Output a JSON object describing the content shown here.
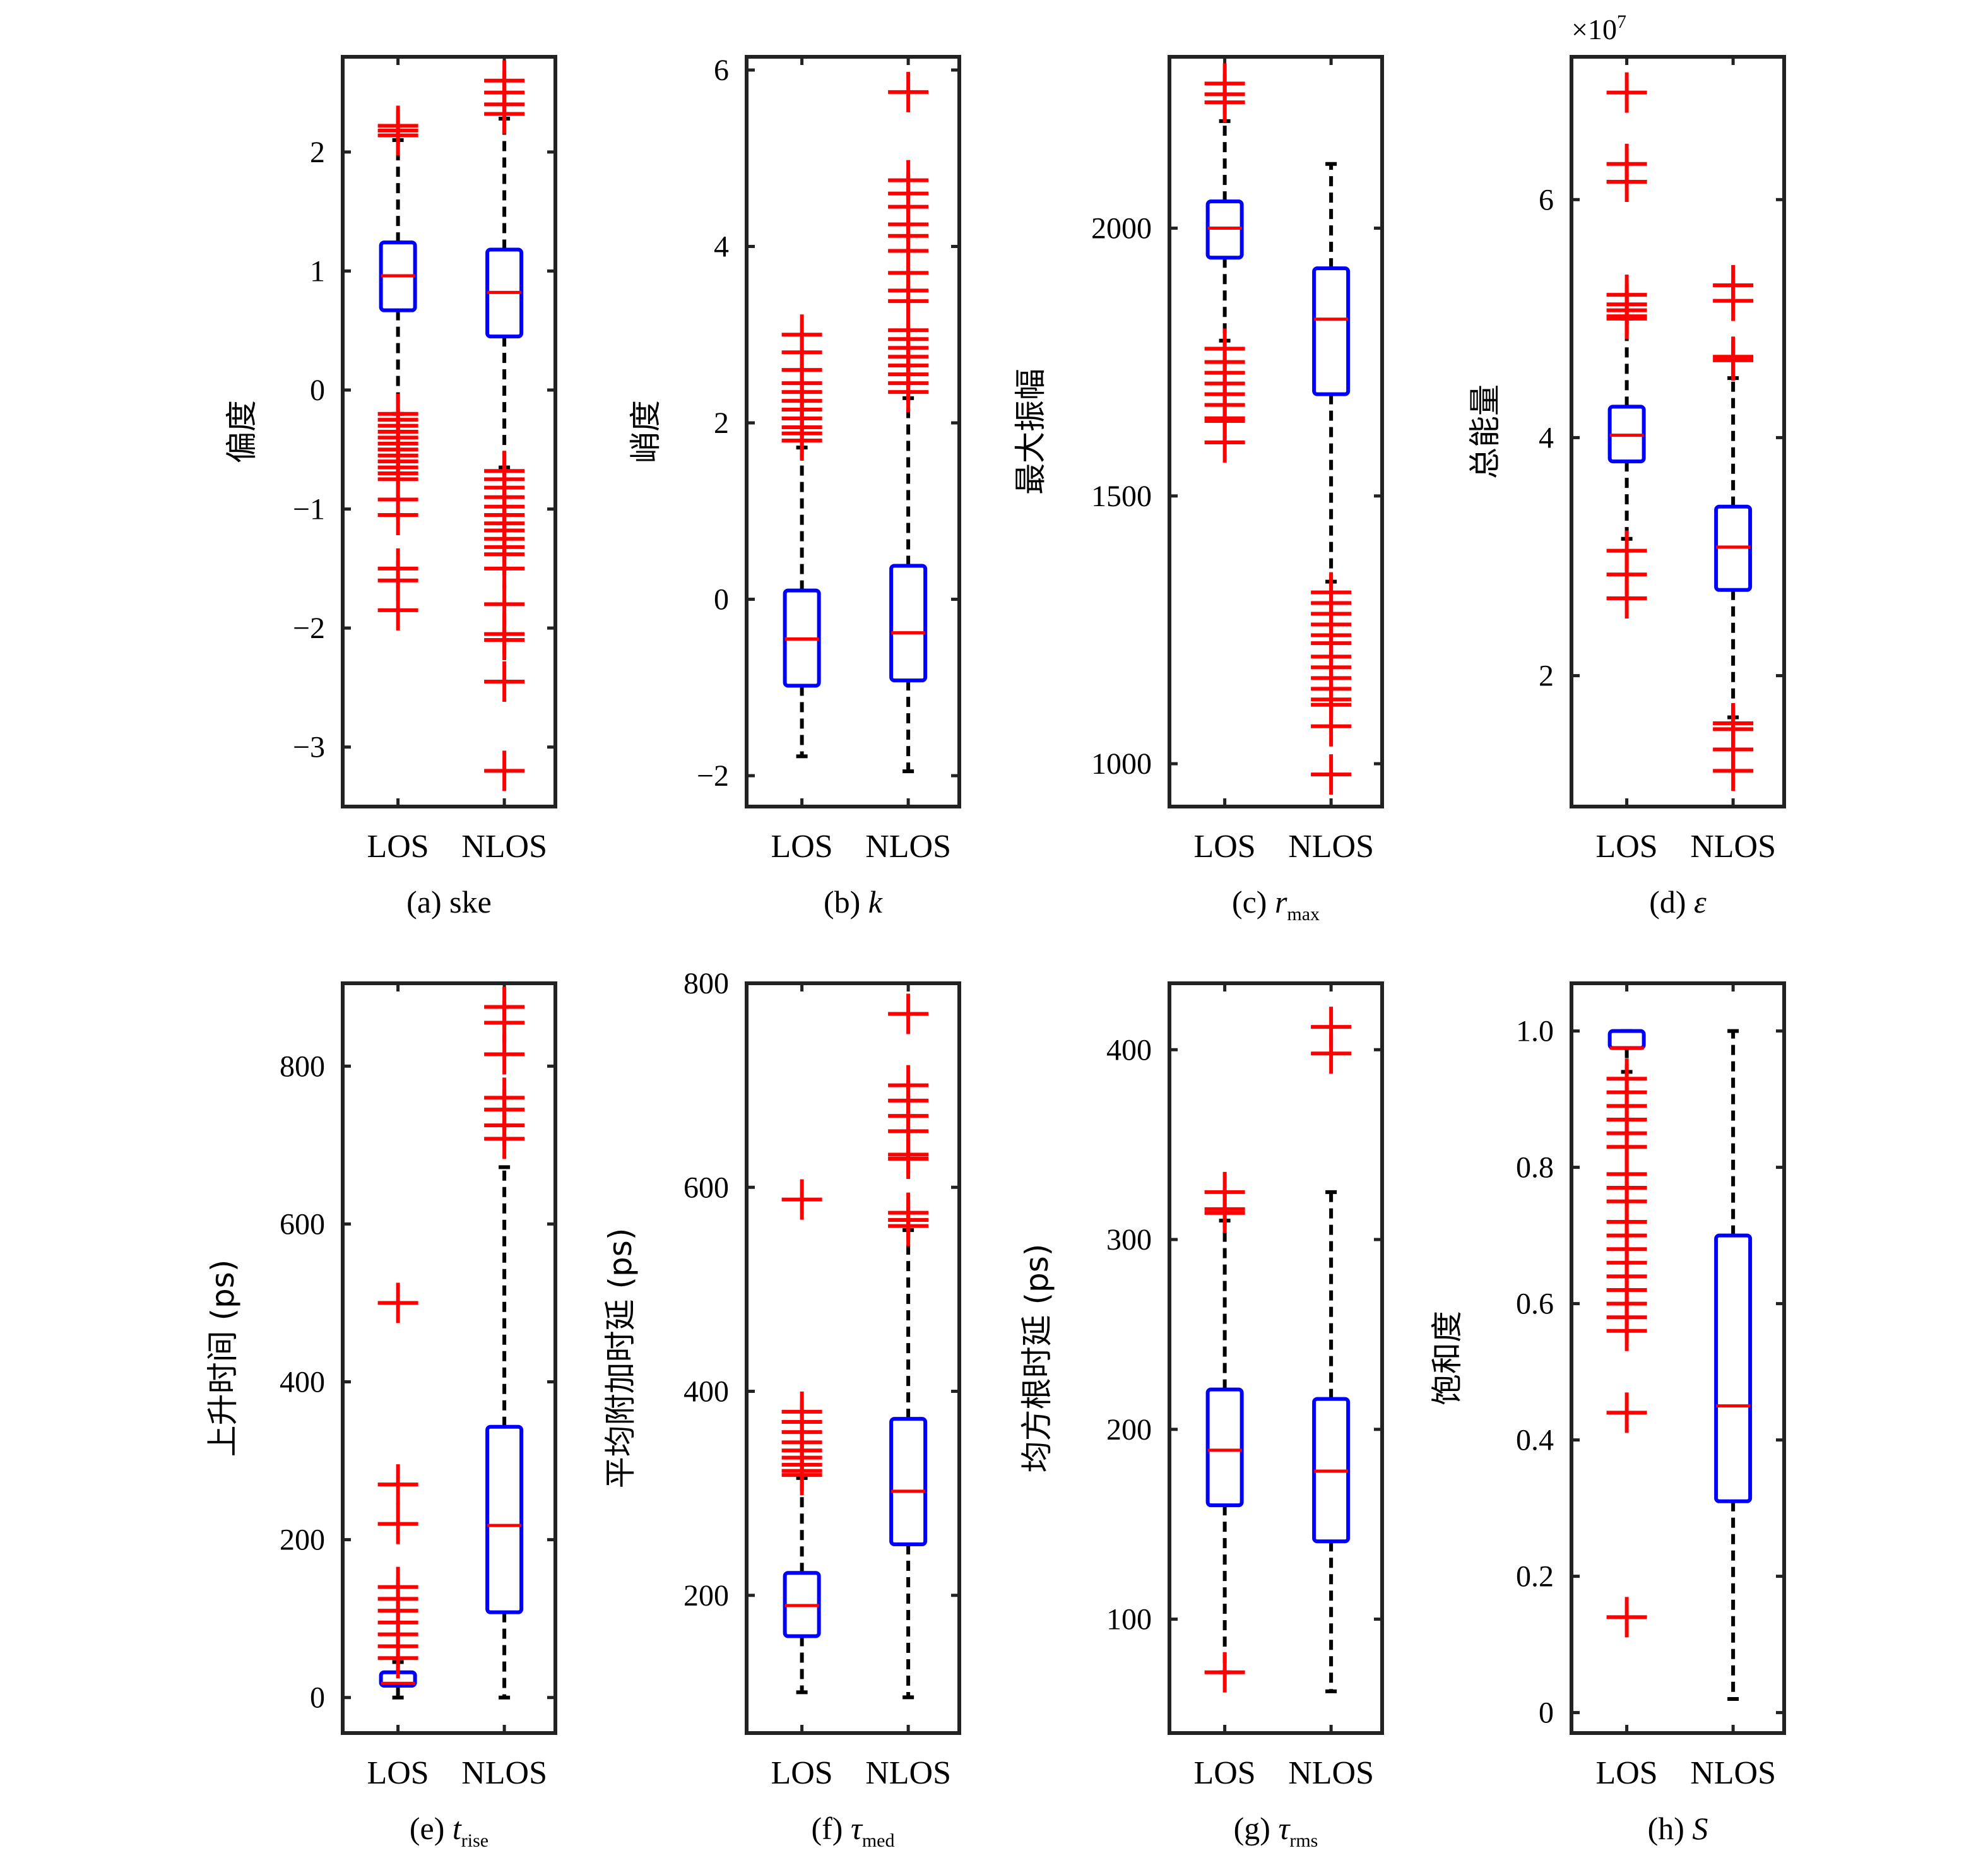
{
  "colors": {
    "box": "#0000ff",
    "median": "#ff0000",
    "outlier": "#ff0000",
    "whisker": "#000000",
    "axes": "#222222"
  },
  "chart_data": [
    {
      "type": "box",
      "caption": {
        "prefix": "(a) ",
        "symbol": "ske",
        "italic": false,
        "sub": ""
      },
      "ylabel": "偏度",
      "categories": [
        "LOS",
        "NLOS"
      ],
      "ylim": [
        -3.5,
        2.8
      ],
      "yticks": [
        -3,
        -2,
        -1,
        0,
        1,
        2
      ],
      "ytick_labels": [
        "−3",
        "−2",
        "−1",
        "0",
        "1",
        "2"
      ],
      "boxes": [
        {
          "whislo": -0.2,
          "q1": 0.67,
          "med": 0.96,
          "q3": 1.24,
          "whishi": 2.1,
          "fliers": [
            2.22,
            2.18,
            2.14,
            -0.2,
            -0.25,
            -0.3,
            -0.35,
            -0.4,
            -0.45,
            -0.5,
            -0.55,
            -0.6,
            -0.65,
            -0.7,
            -0.75,
            -0.92,
            -1.05,
            -1.5,
            -1.6,
            -1.85
          ]
        },
        {
          "whislo": -0.65,
          "q1": 0.45,
          "med": 0.82,
          "q3": 1.18,
          "whishi": 2.28,
          "fliers": [
            2.6,
            2.5,
            2.4,
            2.32,
            -0.68,
            -0.75,
            -0.82,
            -0.9,
            -0.98,
            -1.05,
            -1.12,
            -1.18,
            -1.25,
            -1.32,
            -1.38,
            -1.5,
            -1.8,
            -2.05,
            -2.1,
            -2.45,
            -3.2
          ]
        }
      ]
    },
    {
      "type": "box",
      "caption": {
        "prefix": "(b) ",
        "symbol": "k",
        "italic": true,
        "sub": ""
      },
      "ylabel": "峭度",
      "categories": [
        "LOS",
        "NLOS"
      ],
      "ylim": [
        -2.35,
        6.15
      ],
      "yticks": [
        -2,
        0,
        2,
        4,
        6
      ],
      "ytick_labels": [
        "−2",
        "0",
        "2",
        "4",
        "6"
      ],
      "boxes": [
        {
          "whislo": -1.78,
          "q1": -0.98,
          "med": -0.45,
          "q3": 0.1,
          "whishi": 1.72,
          "fliers": [
            3.0,
            2.8,
            2.6,
            2.45,
            2.35,
            2.25,
            2.15,
            2.05,
            1.95,
            1.88,
            1.8
          ]
        },
        {
          "whislo": -1.95,
          "q1": -0.92,
          "med": -0.38,
          "q3": 0.38,
          "whishi": 2.28,
          "fliers": [
            5.75,
            4.75,
            4.6,
            4.45,
            4.25,
            4.12,
            3.95,
            3.7,
            3.5,
            3.38,
            3.05,
            2.95,
            2.85,
            2.75,
            2.65,
            2.55,
            2.45,
            2.35
          ]
        }
      ]
    },
    {
      "type": "box",
      "caption": {
        "prefix": "(c) ",
        "symbol": "r",
        "italic": true,
        "sub": "max"
      },
      "ylabel": "最大振幅",
      "categories": [
        "LOS",
        "NLOS"
      ],
      "ylim": [
        920,
        2320
      ],
      "yticks": [
        1000,
        1500,
        2000
      ],
      "ytick_labels": [
        "1000",
        "1500",
        "2000"
      ],
      "boxes": [
        {
          "whislo": 1790,
          "q1": 1945,
          "med": 2000,
          "q3": 2050,
          "whishi": 2200,
          "fliers": [
            2270,
            2250,
            2235,
            1775,
            1750,
            1730,
            1710,
            1690,
            1670,
            1645,
            1640,
            1600
          ]
        },
        {
          "whislo": 1340,
          "q1": 1690,
          "med": 1830,
          "q3": 1925,
          "whishi": 2120,
          "fliers": [
            1320,
            1300,
            1280,
            1260,
            1240,
            1225,
            1200,
            1180,
            1160,
            1140,
            1120,
            1110,
            1070,
            980
          ]
        }
      ]
    },
    {
      "type": "box",
      "caption": {
        "prefix": "(d) ",
        "symbol": "ε",
        "italic": true,
        "sub": ""
      },
      "ylabel": "总能量",
      "multiplier": {
        "base": "×10",
        "exp": "7"
      },
      "categories": [
        "LOS",
        "NLOS"
      ],
      "ylim": [
        0.9,
        7.2
      ],
      "yticks": [
        2,
        4,
        6
      ],
      "ytick_labels": [
        "2",
        "4",
        "6"
      ],
      "boxes": [
        {
          "whislo": 3.15,
          "q1": 3.8,
          "med": 4.02,
          "q3": 4.26,
          "whishi": 5.0,
          "fliers": [
            6.9,
            6.3,
            6.15,
            5.2,
            5.12,
            5.07,
            5.02,
            5.0,
            3.05,
            2.85,
            2.65
          ]
        },
        {
          "whislo": 1.65,
          "q1": 2.72,
          "med": 3.08,
          "q3": 3.42,
          "whishi": 4.5,
          "fliers": [
            5.28,
            5.15,
            4.68,
            4.65,
            1.6,
            1.55,
            1.38,
            1.2
          ]
        }
      ]
    },
    {
      "type": "box",
      "caption": {
        "prefix": "(e) ",
        "symbol": "t",
        "italic": true,
        "sub": "rise"
      },
      "ylabel": "上升时间 (ps)",
      "categories": [
        "LOS",
        "NLOS"
      ],
      "ylim": [
        -45,
        905
      ],
      "yticks": [
        0,
        200,
        400,
        600,
        800
      ],
      "ytick_labels": [
        "0",
        "200",
        "400",
        "600",
        "800"
      ],
      "boxes": [
        {
          "whislo": 0,
          "q1": 15,
          "med": 18,
          "q3": 32,
          "whishi": 45,
          "fliers": [
            500,
            270,
            220,
            140,
            125,
            110,
            95,
            80,
            65,
            50
          ]
        },
        {
          "whislo": 0,
          "q1": 108,
          "med": 218,
          "q3": 343,
          "whishi": 672,
          "fliers": [
            875,
            855,
            815,
            760,
            745,
            725,
            708
          ]
        }
      ]
    },
    {
      "type": "box",
      "caption": {
        "prefix": "(f) ",
        "symbol": "τ",
        "italic": true,
        "sub": "med"
      },
      "ylabel": "平均附加时延 (ps)",
      "categories": [
        "LOS",
        "NLOS"
      ],
      "ylim": [
        65,
        800
      ],
      "yticks": [
        200,
        400,
        600,
        800
      ],
      "ytick_labels": [
        "200",
        "400",
        "600",
        "800"
      ],
      "boxes": [
        {
          "whislo": 105,
          "q1": 160,
          "med": 190,
          "q3": 222,
          "whishi": 315,
          "fliers": [
            588,
            380,
            370,
            360,
            350,
            342,
            335,
            328,
            322,
            318
          ]
        },
        {
          "whislo": 100,
          "q1": 250,
          "med": 302,
          "q3": 373,
          "whishi": 558,
          "fliers": [
            770,
            700,
            685,
            670,
            655,
            632,
            628,
            575,
            568,
            562
          ]
        }
      ]
    },
    {
      "type": "box",
      "caption": {
        "prefix": "(g) ",
        "symbol": "τ",
        "italic": true,
        "sub": "rms"
      },
      "ylabel": "均方根时延 (ps)",
      "categories": [
        "LOS",
        "NLOS"
      ],
      "ylim": [
        40,
        435
      ],
      "yticks": [
        100,
        200,
        300,
        400
      ],
      "ytick_labels": [
        "100",
        "200",
        "300",
        "400"
      ],
      "boxes": [
        {
          "whislo": 72,
          "q1": 160,
          "med": 189,
          "q3": 221,
          "whishi": 310,
          "fliers": [
            325,
            316,
            314,
            72
          ]
        },
        {
          "whislo": 62,
          "q1": 141,
          "med": 178,
          "q3": 216,
          "whishi": 325,
          "fliers": [
            412,
            398
          ]
        }
      ]
    },
    {
      "type": "box",
      "caption": {
        "prefix": "(h) ",
        "symbol": "S",
        "italic": true,
        "sub": ""
      },
      "ylabel": "饱和度",
      "categories": [
        "LOS",
        "NLOS"
      ],
      "ylim": [
        -0.03,
        1.07
      ],
      "yticks": [
        0,
        0.2,
        0.4,
        0.6,
        0.8,
        1.0
      ],
      "ytick_labels": [
        "0",
        "0.2",
        "0.4",
        "0.6",
        "0.8",
        "1.0"
      ],
      "boxes": [
        {
          "whislo": 0.94,
          "q1": 0.975,
          "med": 0.975,
          "q3": 1.0,
          "whishi": 1.0,
          "fliers": [
            0.93,
            0.91,
            0.89,
            0.87,
            0.85,
            0.83,
            0.79,
            0.77,
            0.75,
            0.72,
            0.7,
            0.68,
            0.66,
            0.64,
            0.62,
            0.6,
            0.58,
            0.56,
            0.44,
            0.14
          ]
        },
        {
          "whislo": 0.02,
          "q1": 0.31,
          "med": 0.45,
          "q3": 0.7,
          "whishi": 1.0,
          "fliers": []
        }
      ]
    }
  ]
}
